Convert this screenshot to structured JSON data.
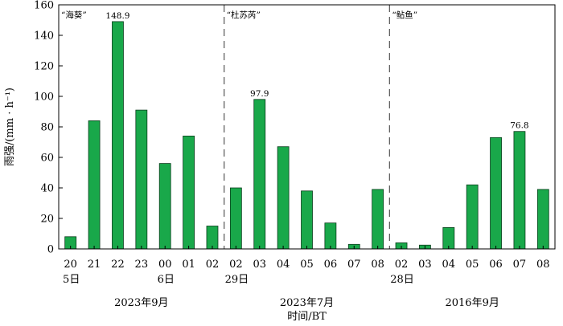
{
  "chart_data": {
    "type": "bar",
    "ylabel": "雨强/(mm · h⁻¹)",
    "xlabel": "时间/BT",
    "ylim": [
      0,
      160
    ],
    "yticks": [
      0,
      20,
      40,
      60,
      80,
      100,
      120,
      140,
      160
    ],
    "bar_color": "#19a84a",
    "groups": [
      {
        "typhoon": "“海葵”",
        "date_label": "2023年9月",
        "hours": [
          "20",
          "21",
          "22",
          "23",
          "00",
          "01",
          "02"
        ],
        "day_labels": [
          "5日",
          "",
          "",
          "",
          "6日",
          "",
          ""
        ],
        "values": [
          8,
          84,
          149,
          91,
          56,
          74,
          15
        ],
        "annotation": {
          "index": 2,
          "text": "148.9"
        }
      },
      {
        "typhoon": "“杜苏芮”",
        "date_label": "2023年7月",
        "hours": [
          "02",
          "03",
          "04",
          "05",
          "06",
          "07",
          "08"
        ],
        "day_labels": [
          "29日",
          "",
          "",
          "",
          "",
          "",
          ""
        ],
        "values": [
          40,
          98,
          67,
          38,
          17,
          3,
          39
        ],
        "annotation": {
          "index": 1,
          "text": "97.9"
        }
      },
      {
        "typhoon": "“鲇鱼”",
        "date_label": "2016年9月",
        "hours": [
          "02",
          "03",
          "04",
          "05",
          "06",
          "07",
          "08"
        ],
        "day_labels": [
          "28日",
          "",
          "",
          "",
          "",
          "",
          ""
        ],
        "values": [
          4,
          2.5,
          14,
          42,
          73,
          77,
          39
        ],
        "annotation": {
          "index": 5,
          "text": "76.8"
        }
      }
    ]
  }
}
